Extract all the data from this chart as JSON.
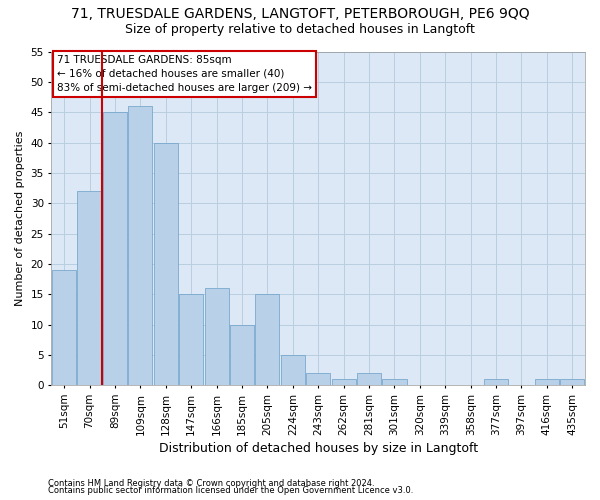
{
  "title": "71, TRUESDALE GARDENS, LANGTOFT, PETERBOROUGH, PE6 9QQ",
  "subtitle": "Size of property relative to detached houses in Langtoft",
  "xlabel": "Distribution of detached houses by size in Langtoft",
  "ylabel": "Number of detached properties",
  "categories": [
    "51sqm",
    "70sqm",
    "89sqm",
    "109sqm",
    "128sqm",
    "147sqm",
    "166sqm",
    "185sqm",
    "205sqm",
    "224sqm",
    "243sqm",
    "262sqm",
    "281sqm",
    "301sqm",
    "320sqm",
    "339sqm",
    "358sqm",
    "377sqm",
    "397sqm",
    "416sqm",
    "435sqm"
  ],
  "values": [
    19,
    32,
    45,
    46,
    40,
    15,
    16,
    10,
    15,
    5,
    2,
    1,
    2,
    1,
    0,
    0,
    0,
    1,
    0,
    1,
    1
  ],
  "bar_color": "#b8d0e8",
  "bar_edge_color": "#6a9fc8",
  "vline_color": "#cc0000",
  "vline_x_index": 1.5,
  "ylim": [
    0,
    55
  ],
  "yticks": [
    0,
    5,
    10,
    15,
    20,
    25,
    30,
    35,
    40,
    45,
    50,
    55
  ],
  "annotation_text": "71 TRUESDALE GARDENS: 85sqm\n← 16% of detached houses are smaller (40)\n83% of semi-detached houses are larger (209) →",
  "annotation_box_color": "#ffffff",
  "annotation_box_edge": "#cc0000",
  "footer1": "Contains HM Land Registry data © Crown copyright and database right 2024.",
  "footer2": "Contains public sector information licensed under the Open Government Licence v3.0.",
  "bg_color": "#ffffff",
  "plot_bg_color": "#dce8f5",
  "grid_color": "#b8cfe0",
  "title_fontsize": 10,
  "subtitle_fontsize": 9,
  "xlabel_fontsize": 9,
  "ylabel_fontsize": 8,
  "tick_fontsize": 7.5,
  "annot_fontsize": 7.5,
  "footer_fontsize": 6
}
